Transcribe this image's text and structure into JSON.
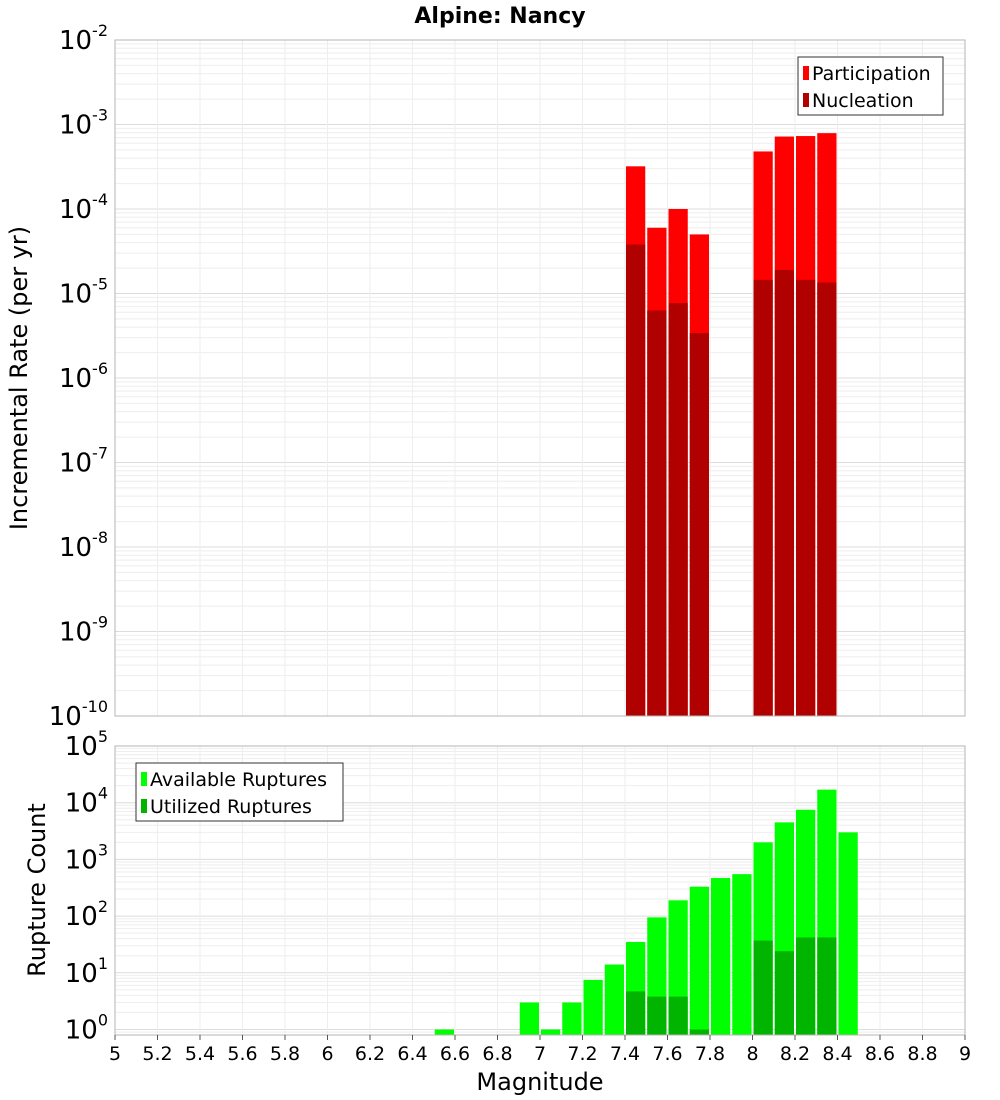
{
  "chart_data": [
    {
      "type": "bar",
      "title": "Alpine: Nancy",
      "xlabel": "",
      "ylabel": "Incremental Rate (per yr)",
      "yscale": "log",
      "ylim": [
        1e-10,
        0.01
      ],
      "xlim": [
        5,
        9
      ],
      "grid": true,
      "legend_position": "top-right",
      "bin_width": 0.1,
      "x": [
        7.45,
        7.55,
        7.65,
        7.75,
        8.05,
        8.15,
        8.25,
        8.35
      ],
      "series": [
        {
          "name": "Participation",
          "color": "#ff0000",
          "values": [
            0.00032,
            6e-05,
            0.0001,
            5e-05,
            0.00048,
            0.00072,
            0.00073,
            0.00079
          ]
        },
        {
          "name": "Nucleation",
          "color": "#b00000",
          "values": [
            3.8e-05,
            6.3e-06,
            7.7e-06,
            3.4e-06,
            1.45e-05,
            1.9e-05,
            1.45e-05,
            1.35e-05
          ]
        }
      ],
      "ytick_exponents": [
        -10,
        -9,
        -8,
        -7,
        -6,
        -5,
        -4,
        -3,
        -2
      ]
    },
    {
      "type": "bar",
      "title": "",
      "xlabel": "Magnitude",
      "ylabel": "Rupture Count",
      "yscale": "log",
      "ylim": [
        0.8,
        100000.0
      ],
      "xlim": [
        5,
        9
      ],
      "grid": true,
      "legend_position": "top-left",
      "bin_width": 0.1,
      "x": [
        6.55,
        6.95,
        7.05,
        7.15,
        7.25,
        7.35,
        7.45,
        7.55,
        7.65,
        7.75,
        7.85,
        7.95,
        8.05,
        8.15,
        8.25,
        8.35,
        8.45
      ],
      "series": [
        {
          "name": "Available Ruptures",
          "color": "#00ff00",
          "values": [
            1,
            3,
            1,
            3,
            7.5,
            14,
            35,
            95,
            190,
            330,
            470,
            550,
            2000,
            4500,
            7500,
            17000,
            3000
          ]
        },
        {
          "name": "Utilized Ruptures",
          "color": "#00b400",
          "values": [
            0,
            0,
            0,
            0,
            0,
            0,
            4.7,
            3.8,
            3.8,
            1,
            0,
            0,
            37,
            24,
            42,
            42,
            0
          ]
        }
      ],
      "xticks": [
        "5",
        "5.2",
        "5.4",
        "5.6",
        "5.8",
        "6",
        "6.2",
        "6.4",
        "6.6",
        "6.8",
        "7",
        "7.2",
        "7.4",
        "7.6",
        "7.8",
        "8",
        "8.2",
        "8.4",
        "8.6",
        "8.8",
        "9"
      ],
      "ytick_exponents": [
        0,
        1,
        2,
        3,
        4,
        5
      ]
    }
  ]
}
